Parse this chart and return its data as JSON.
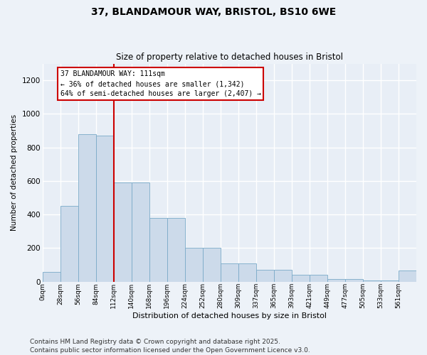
{
  "title": "37, BLANDAMOUR WAY, BRISTOL, BS10 6WE",
  "subtitle": "Size of property relative to detached houses in Bristol",
  "xlabel": "Distribution of detached houses by size in Bristol",
  "ylabel": "Number of detached properties",
  "bar_color": "#ccdaea",
  "bar_edge_color": "#7aaac8",
  "fig_bg": "#edf2f8",
  "axes_bg": "#e8eef6",
  "grid_color": "#ffffff",
  "categories": [
    "0sqm",
    "28sqm",
    "56sqm",
    "84sqm",
    "112sqm",
    "140sqm",
    "168sqm",
    "196sqm",
    "224sqm",
    "252sqm",
    "280sqm",
    "309sqm",
    "337sqm",
    "365sqm",
    "393sqm",
    "421sqm",
    "449sqm",
    "477sqm",
    "505sqm",
    "533sqm",
    "561sqm"
  ],
  "values": [
    60,
    450,
    880,
    870,
    590,
    590,
    380,
    380,
    200,
    200,
    110,
    110,
    70,
    70,
    40,
    40,
    15,
    15,
    7,
    7,
    65
  ],
  "ylim": [
    0,
    1300
  ],
  "yticks": [
    0,
    200,
    400,
    600,
    800,
    1000,
    1200
  ],
  "vline_x": 4.0,
  "vline_color": "#cc0000",
  "annotation_text": "37 BLANDAMOUR WAY: 111sqm\n← 36% of detached houses are smaller (1,342)\n64% of semi-detached houses are larger (2,407) →",
  "ann_bg": "#ffffff",
  "ann_edge": "#cc0000",
  "footer": "Contains HM Land Registry data © Crown copyright and database right 2025.\nContains public sector information licensed under the Open Government Licence v3.0.",
  "footer_fontsize": 6.5
}
